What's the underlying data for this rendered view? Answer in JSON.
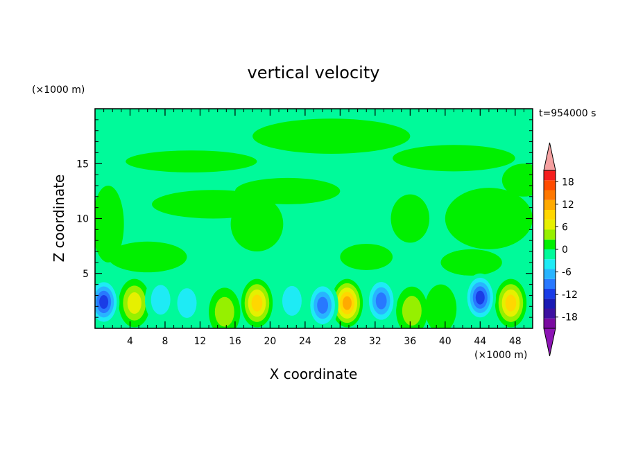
{
  "chart_data": {
    "type": "heatmap",
    "title": "vertical velocity",
    "xlabel": "X coordinate",
    "ylabel": "Z coordinate",
    "x_unit": "(×1000 m)",
    "y_unit": "(×1000 m)",
    "time_label": "t=954000 s",
    "xlim": [
      0,
      50
    ],
    "ylim": [
      0,
      20
    ],
    "x_ticks": [
      4,
      8,
      12,
      16,
      20,
      24,
      28,
      32,
      36,
      40,
      44,
      48
    ],
    "y_ticks": [
      5,
      10,
      15
    ],
    "colorbar": {
      "tick_labels": [
        "18",
        "12",
        "6",
        "0",
        "-6",
        "-12",
        "-18"
      ],
      "tick_values": [
        18,
        12,
        6,
        0,
        -6,
        -12,
        -18
      ],
      "range": [
        -21,
        21
      ],
      "colors": [
        "#7a0aa0",
        "#3d10a0",
        "#1a1ab4",
        "#1a3ce6",
        "#2878ff",
        "#28b4ff",
        "#1eebf5",
        "#00fa9a",
        "#00f000",
        "#96f000",
        "#e6f000",
        "#ffd700",
        "#ffaa00",
        "#ff7800",
        "#ff4b00",
        "#f51e1e"
      ],
      "over_color": "#f5a0a0",
      "under_color": "#8c14b4"
    },
    "background_level_colors": {
      "near_zero_negative": "#00fa9a",
      "near_zero_positive": "#00f000"
    },
    "updraft_cells": [
      {
        "x": 4.5,
        "z": 2.3,
        "peak": 8
      },
      {
        "x": 18.5,
        "z": 2.3,
        "peak": 11
      },
      {
        "x": 28.8,
        "z": 2.3,
        "peak": 13
      },
      {
        "x": 47.5,
        "z": 2.3,
        "peak": 11
      },
      {
        "x": 14.8,
        "z": 1.5,
        "peak": 5
      },
      {
        "x": 36.2,
        "z": 1.6,
        "peak": 4
      },
      {
        "x": 39.5,
        "z": 1.8,
        "peak": 3
      }
    ],
    "downdraft_cells": [
      {
        "x": 1.0,
        "z": 2.4,
        "peak": -12
      },
      {
        "x": 26.0,
        "z": 2.1,
        "peak": -11
      },
      {
        "x": 32.7,
        "z": 2.5,
        "peak": -10
      },
      {
        "x": 44.0,
        "z": 2.8,
        "peak": -12
      },
      {
        "x": 10.5,
        "z": 2.3,
        "peak": -5
      },
      {
        "x": 22.5,
        "z": 2.5,
        "peak": -5
      },
      {
        "x": 7.5,
        "z": 2.6,
        "peak": -4
      }
    ],
    "upper_positive_patches": [
      {
        "x": 6,
        "z": 6.5,
        "rx": 4.5,
        "rz": 1.4
      },
      {
        "x": 18.5,
        "z": 9.5,
        "rx": 3,
        "rz": 2.5
      },
      {
        "x": 13.5,
        "z": 11.3,
        "rx": 7,
        "rz": 1.3
      },
      {
        "x": 22,
        "z": 12.5,
        "rx": 6,
        "rz": 1.2
      },
      {
        "x": 36,
        "z": 10,
        "rx": 2.2,
        "rz": 2.2
      },
      {
        "x": 45,
        "z": 10,
        "rx": 5,
        "rz": 2.8
      },
      {
        "x": 11,
        "z": 15.2,
        "rx": 7.5,
        "rz": 1.0
      },
      {
        "x": 27,
        "z": 17.5,
        "rx": 9,
        "rz": 1.6
      },
      {
        "x": 41,
        "z": 15.5,
        "rx": 7,
        "rz": 1.2
      },
      {
        "x": 49,
        "z": 13.5,
        "rx": 2.5,
        "rz": 1.5
      },
      {
        "x": 1.5,
        "z": 9.5,
        "rx": 1.8,
        "rz": 3.5
      },
      {
        "x": 31,
        "z": 6.5,
        "rx": 3,
        "rz": 1.2
      },
      {
        "x": 43,
        "z": 6,
        "rx": 3.5,
        "rz": 1.2
      }
    ]
  }
}
